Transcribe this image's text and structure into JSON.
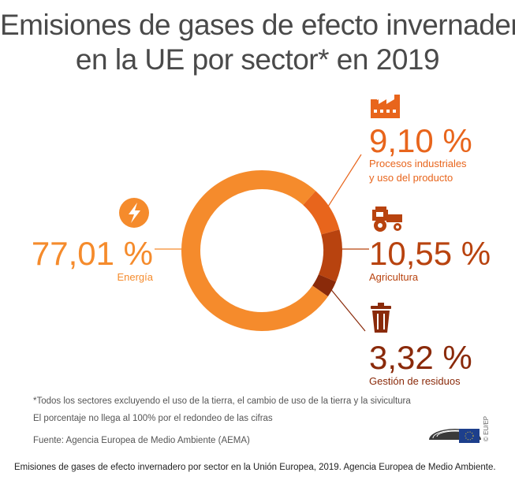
{
  "chart_data": {
    "type": "pie",
    "title": [
      "Emisiones de gases de efecto invernadero",
      "en la UE por sector* en 2019"
    ],
    "slices": [
      {
        "label": "Energía",
        "value": 77.01,
        "value_label": "77,01 %",
        "color": "#f58b2c",
        "icon": "lightning-icon"
      },
      {
        "label": "Procesos industriales y uso del producto",
        "label_lines": [
          "Procesos industriales",
          "y uso del producto"
        ],
        "value": 9.1,
        "value_label": "9,10 %",
        "color": "#e8651c",
        "icon": "factory-icon"
      },
      {
        "label": "Agricultura",
        "value": 10.55,
        "value_label": "10,55 %",
        "color": "#b8430f",
        "icon": "tractor-icon"
      },
      {
        "label": "Gestión de residuos",
        "value": 3.32,
        "value_label": "3,32 %",
        "color": "#8a2a0a",
        "icon": "trash-bin-icon"
      }
    ]
  },
  "notes": {
    "footnote": "*Todos los sectores excluyendo el uso de la tierra, el cambio de uso de la tierra y la sivicultura",
    "rounding": "El porcentaje no llega al 100% por el redondeo de las cifras",
    "source": "Fuente:  Agencia Europea de Medio Ambiente (AEMA)"
  },
  "logo": {
    "text": "© EU/EP",
    "icon": "european-parliament-logo-icon"
  },
  "caption": "Emisiones de gases de efecto invernadero por sector en la Unión Europea, 2019. Agencia Europea de Medio Ambiente."
}
